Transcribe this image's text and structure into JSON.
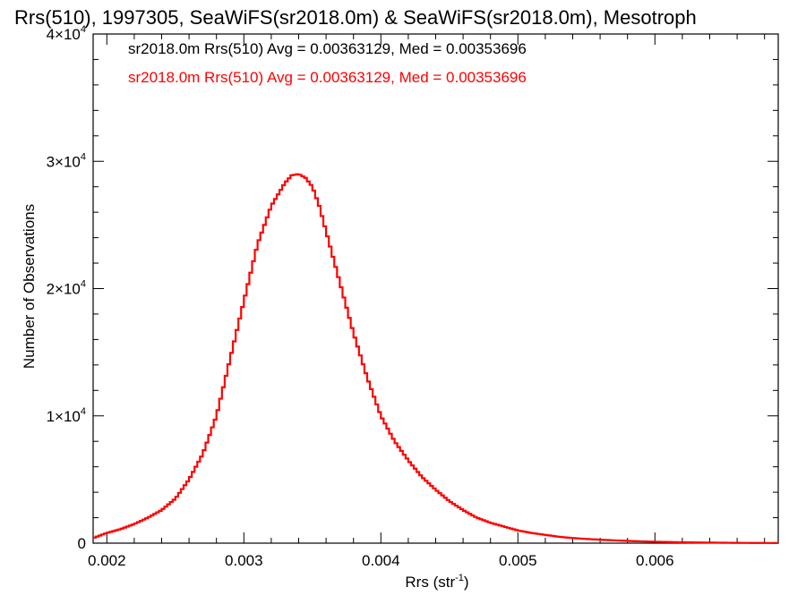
{
  "chart_data": {
    "type": "histogram",
    "title": "Rrs(510), 1997305, SeaWiFS(sr2018.0m) & SeaWiFS(sr2018.0m), Mesotroph",
    "xlabel": "Rrs (str",
    "xlabel_superscript": "-1",
    "xlabel_suffix": ")",
    "ylabel": "Number of Observations",
    "xlim": [
      0.0019,
      0.0069
    ],
    "ylim": [
      0,
      40000
    ],
    "xticks": [
      0.002,
      0.003,
      0.004,
      0.005,
      0.006
    ],
    "xtick_labels": [
      "0.002",
      "0.003",
      "0.004",
      "0.005",
      "0.006"
    ],
    "yticks": [
      0,
      10000,
      20000,
      30000,
      40000
    ],
    "ytick_labels": [
      {
        "mant": "0",
        "exp": ""
      },
      {
        "mant": "1×10",
        "exp": "4"
      },
      {
        "mant": "2×10",
        "exp": "4"
      },
      {
        "mant": "3×10",
        "exp": "4"
      },
      {
        "mant": "4×10",
        "exp": "4"
      }
    ],
    "legend": [
      {
        "text": "sr2018.0m Rrs(510) Avg = 0.00363129, Med = 0.00353696",
        "color": "#000000"
      },
      {
        "text": "sr2018.0m Rrs(510) Avg = 0.00363129, Med = 0.00353696",
        "color": "#ff0000"
      }
    ],
    "series": [
      {
        "color": "#ff0000",
        "x": [
          0.0019,
          0.002,
          0.0021,
          0.0022,
          0.0023,
          0.0024,
          0.0025,
          0.0026,
          0.0027,
          0.0028,
          0.0029,
          0.003,
          0.0031,
          0.0032,
          0.0033,
          0.00335,
          0.0034,
          0.00345,
          0.0035,
          0.00355,
          0.0036,
          0.0037,
          0.0038,
          0.0039,
          0.004,
          0.0041,
          0.0042,
          0.0043,
          0.0044,
          0.0045,
          0.0046,
          0.0047,
          0.0048,
          0.0049,
          0.005,
          0.0051,
          0.0052,
          0.0053,
          0.0054,
          0.0055,
          0.0056,
          0.0057,
          0.0058,
          0.0059,
          0.006,
          0.0061,
          0.0062,
          0.0063,
          0.0064,
          0.0065,
          0.0066,
          0.0067,
          0.0068,
          0.0069
        ],
        "y": [
          400,
          800,
          1100,
          1500,
          2000,
          2600,
          3500,
          5000,
          7000,
          10000,
          14500,
          19000,
          23500,
          26500,
          28300,
          28900,
          29000,
          28700,
          28000,
          26500,
          24500,
          20500,
          16500,
          13000,
          10000,
          8000,
          6500,
          5200,
          4200,
          3300,
          2600,
          2000,
          1600,
          1300,
          1000,
          800,
          650,
          500,
          400,
          330,
          270,
          220,
          180,
          140,
          110,
          90,
          70,
          55,
          45,
          35,
          25,
          20,
          15,
          10
        ]
      }
    ]
  }
}
